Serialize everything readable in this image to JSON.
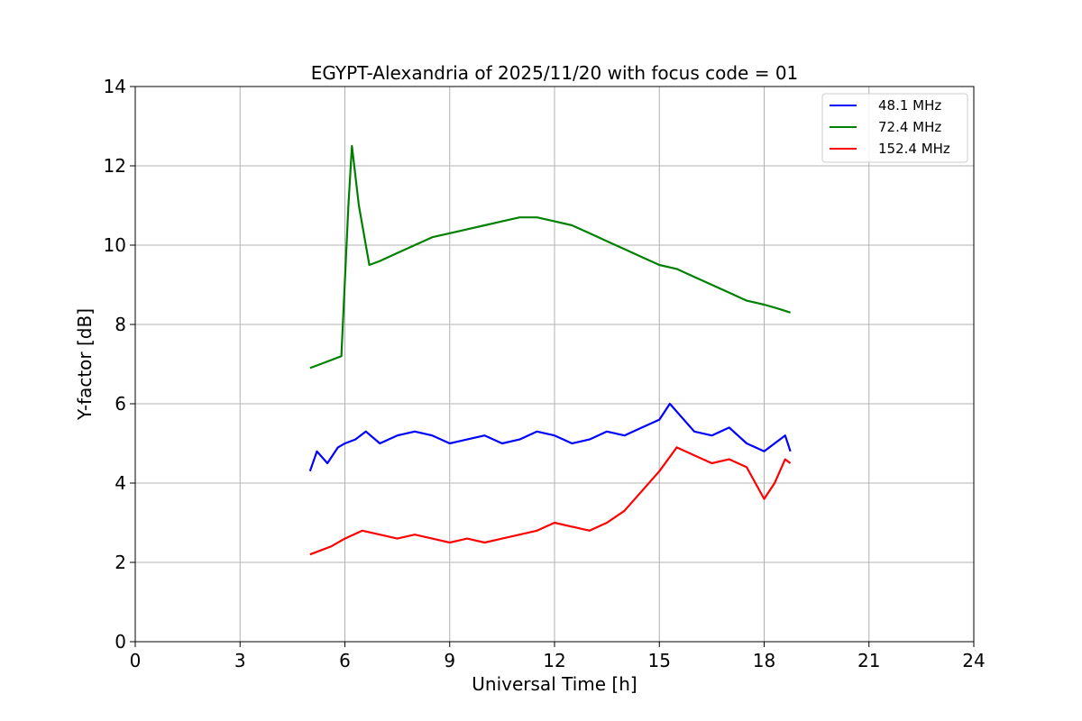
{
  "chart_data": {
    "type": "line",
    "title": "EGYPT-Alexandria of 2025/11/20 with focus code = 01",
    "xlabel": "Universal Time [h]",
    "ylabel": "Y-factor [dB]",
    "xlim": [
      0,
      24
    ],
    "ylim": [
      0,
      14
    ],
    "xticks": [
      "0",
      "3",
      "6",
      "9",
      "12",
      "15",
      "18",
      "21",
      "24"
    ],
    "yticks": [
      "0",
      "2",
      "4",
      "6",
      "8",
      "10",
      "12",
      "14"
    ],
    "grid": true,
    "legend_position": "top-right",
    "series": [
      {
        "name": "48.1 MHz",
        "color": "#0000ff",
        "x": [
          5.0,
          5.2,
          5.5,
          5.8,
          6.0,
          6.3,
          6.6,
          7.0,
          7.5,
          8.0,
          8.5,
          9.0,
          9.5,
          10.0,
          10.5,
          11.0,
          11.5,
          12.0,
          12.5,
          13.0,
          13.5,
          14.0,
          14.5,
          15.0,
          15.3,
          15.6,
          16.0,
          16.5,
          17.0,
          17.5,
          18.0,
          18.3,
          18.6,
          18.75
        ],
        "y": [
          4.3,
          4.8,
          4.5,
          4.9,
          5.0,
          5.1,
          5.3,
          5.0,
          5.2,
          5.3,
          5.2,
          5.0,
          5.1,
          5.2,
          5.0,
          5.1,
          5.3,
          5.2,
          5.0,
          5.1,
          5.3,
          5.2,
          5.4,
          5.6,
          6.0,
          5.7,
          5.3,
          5.2,
          5.4,
          5.0,
          4.8,
          5.0,
          5.2,
          4.8
        ]
      },
      {
        "name": "72.4 MHz",
        "color": "#008000",
        "x": [
          5.0,
          5.3,
          5.6,
          5.9,
          6.1,
          6.2,
          6.4,
          6.7,
          7.0,
          7.5,
          8.0,
          8.5,
          9.0,
          9.5,
          10.0,
          10.5,
          11.0,
          11.5,
          12.0,
          12.5,
          13.0,
          13.5,
          14.0,
          14.5,
          15.0,
          15.5,
          16.0,
          16.5,
          17.0,
          17.5,
          18.0,
          18.4,
          18.75
        ],
        "y": [
          6.9,
          7.0,
          7.1,
          7.2,
          11.0,
          12.5,
          11.0,
          9.5,
          9.6,
          9.8,
          10.0,
          10.2,
          10.3,
          10.4,
          10.5,
          10.6,
          10.7,
          10.7,
          10.6,
          10.5,
          10.3,
          10.1,
          9.9,
          9.7,
          9.5,
          9.4,
          9.2,
          9.0,
          8.8,
          8.6,
          8.5,
          8.4,
          8.3
        ]
      },
      {
        "name": "152.4 MHz",
        "color": "#ff0000",
        "x": [
          5.0,
          5.3,
          5.6,
          6.0,
          6.5,
          7.0,
          7.5,
          8.0,
          8.5,
          9.0,
          9.5,
          10.0,
          10.5,
          11.0,
          11.5,
          12.0,
          12.5,
          13.0,
          13.5,
          14.0,
          14.5,
          15.0,
          15.5,
          16.0,
          16.5,
          17.0,
          17.5,
          18.0,
          18.3,
          18.6,
          18.75
        ],
        "y": [
          2.2,
          2.3,
          2.4,
          2.6,
          2.8,
          2.7,
          2.6,
          2.7,
          2.6,
          2.5,
          2.6,
          2.5,
          2.6,
          2.7,
          2.8,
          3.0,
          2.9,
          2.8,
          3.0,
          3.3,
          3.8,
          4.3,
          4.9,
          4.7,
          4.5,
          4.6,
          4.4,
          3.6,
          4.0,
          4.6,
          4.5
        ]
      }
    ]
  }
}
